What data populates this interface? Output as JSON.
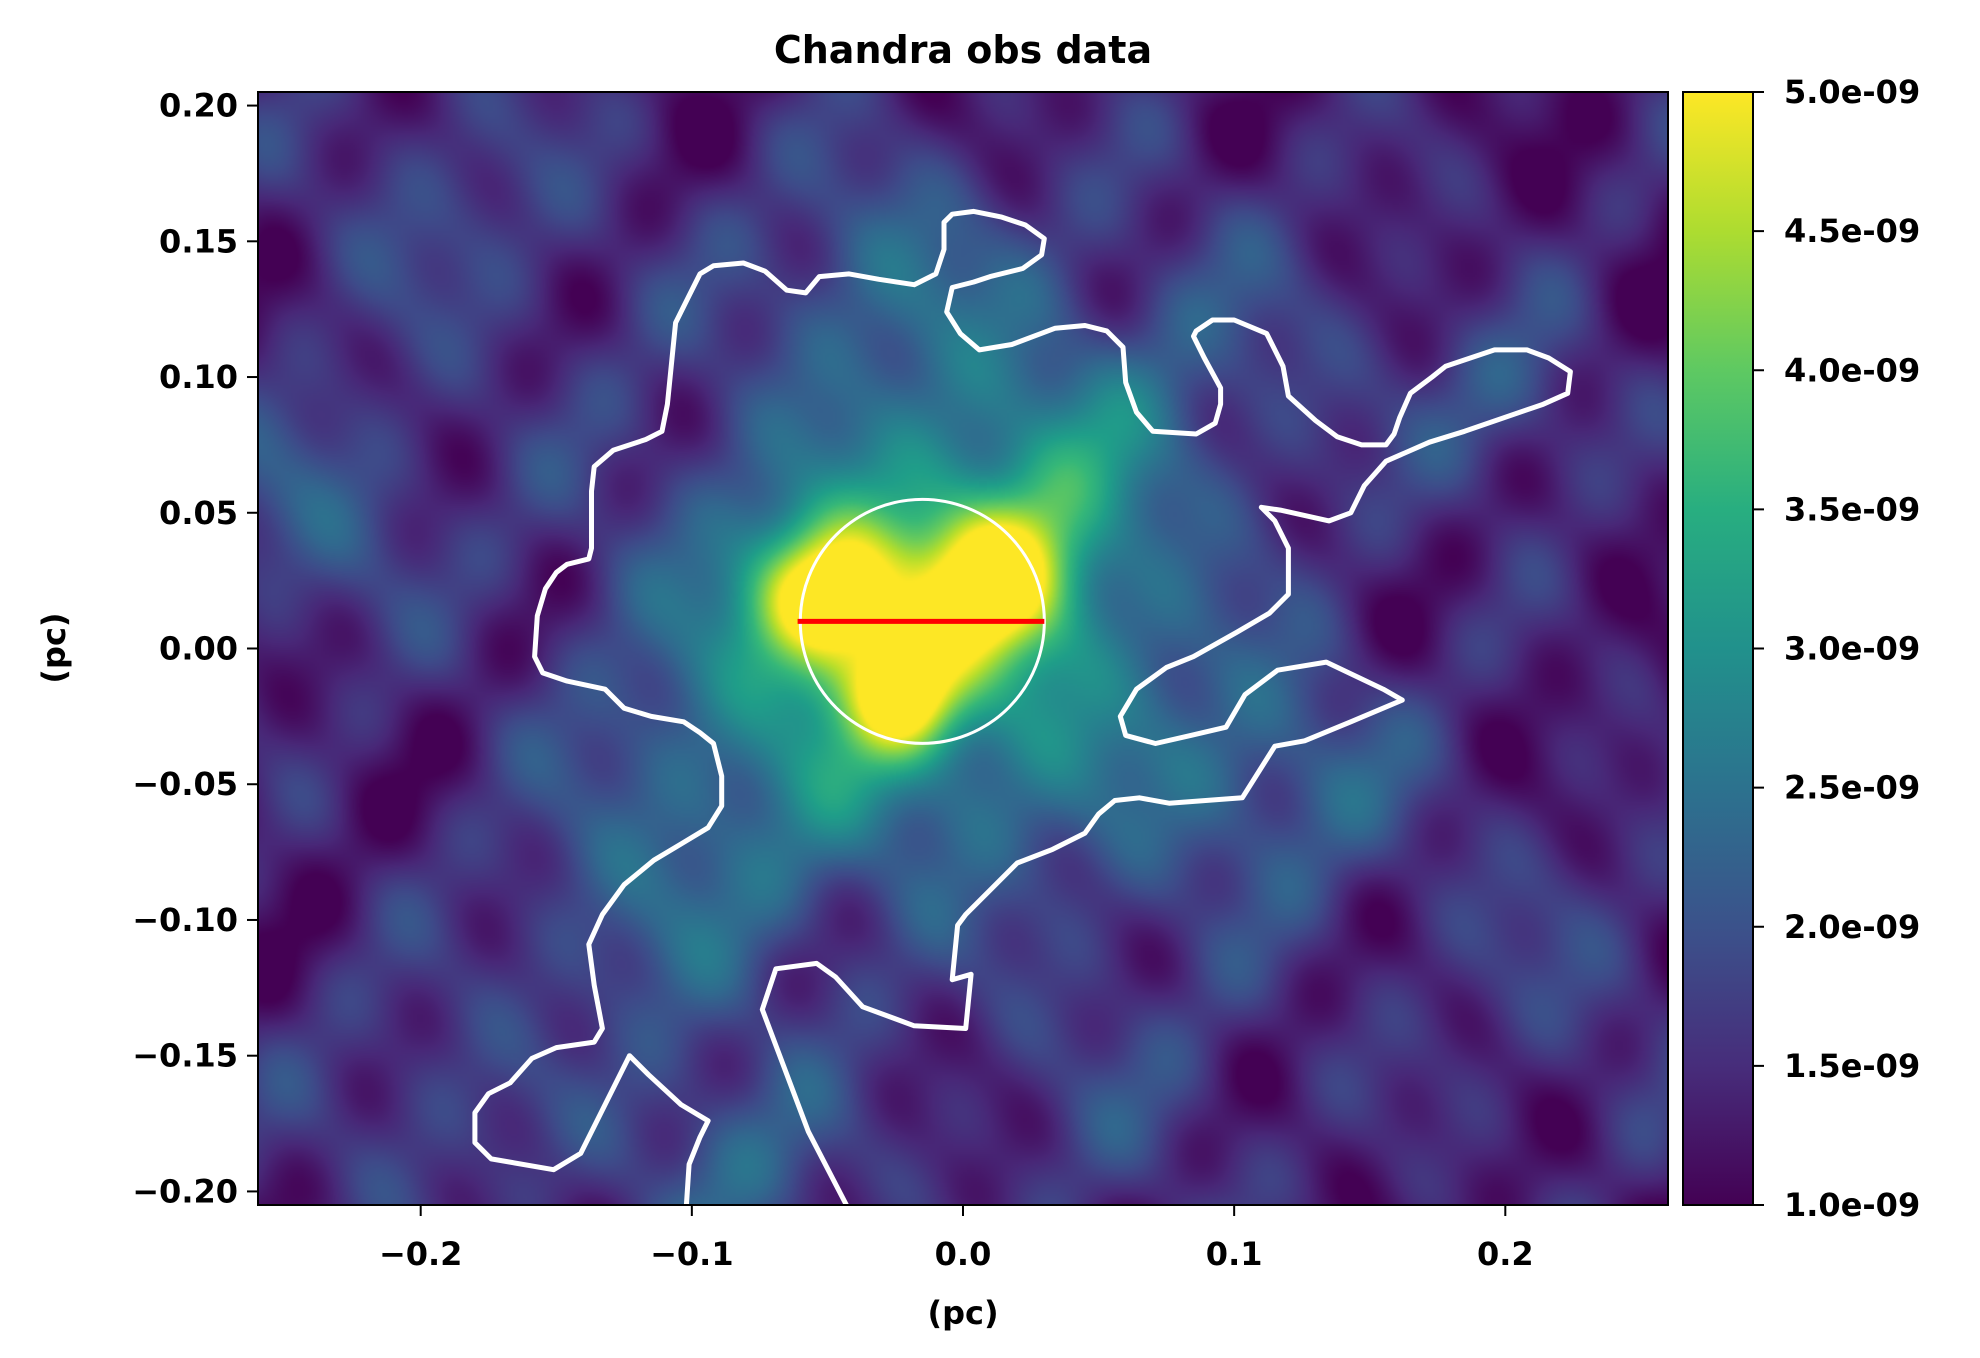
{
  "chart_data": {
    "type": "heatmap",
    "title": "Chandra obs data",
    "xlabel": "(pc)",
    "ylabel": "(pc)",
    "xlim": [
      -0.26,
      0.26
    ],
    "ylim": [
      -0.205,
      0.205
    ],
    "xticks": [
      {
        "value": -0.2,
        "label": "−0.2"
      },
      {
        "value": -0.1,
        "label": "−0.1"
      },
      {
        "value": 0.0,
        "label": "0.0"
      },
      {
        "value": 0.1,
        "label": "0.1"
      },
      {
        "value": 0.2,
        "label": "0.2"
      }
    ],
    "yticks": [
      {
        "value": 0.2,
        "label": "0.20"
      },
      {
        "value": 0.15,
        "label": "0.15"
      },
      {
        "value": 0.1,
        "label": "0.10"
      },
      {
        "value": 0.05,
        "label": "0.05"
      },
      {
        "value": 0.0,
        "label": "0.00"
      },
      {
        "value": -0.05,
        "label": "−0.05"
      },
      {
        "value": -0.1,
        "label": "−0.10"
      },
      {
        "value": -0.15,
        "label": "−0.15"
      },
      {
        "value": -0.2,
        "label": "−0.20"
      }
    ],
    "colorbar": {
      "colormap": "viridis",
      "vmin": 1e-09,
      "vmax": 5e-09,
      "ticks": [
        {
          "value": 1e-09,
          "label": "1.0e-09"
        },
        {
          "value": 1.5e-09,
          "label": "1.5e-09"
        },
        {
          "value": 2e-09,
          "label": "2.0e-09"
        },
        {
          "value": 2.5e-09,
          "label": "2.5e-09"
        },
        {
          "value": 3e-09,
          "label": "3.0e-09"
        },
        {
          "value": 3.5e-09,
          "label": "3.5e-09"
        },
        {
          "value": 4e-09,
          "label": "4.0e-09"
        },
        {
          "value": 4.5e-09,
          "label": "4.5e-09"
        },
        {
          "value": 5e-09,
          "label": "5.0e-09"
        }
      ]
    },
    "sources": [
      {
        "x": -0.05,
        "y": 0.02,
        "amp": 3e-09,
        "sigma": 0.018
      },
      {
        "x": 0.012,
        "y": 0.025,
        "amp": 2.6e-09,
        "sigma": 0.02
      },
      {
        "x": -0.022,
        "y": -0.018,
        "amp": 2.3e-09,
        "sigma": 0.014
      },
      {
        "x": -0.015,
        "y": 0.008,
        "amp": 1.3e-09,
        "sigma": 0.045
      },
      {
        "x": -0.015,
        "y": 0.02,
        "amp": 9e-10,
        "sigma": 0.08
      },
      {
        "x": 0.04,
        "y": 0.07,
        "amp": 9e-10,
        "sigma": 0.03
      },
      {
        "x": -0.07,
        "y": -0.04,
        "amp": 6e-10,
        "sigma": 0.05
      },
      {
        "x": -0.025,
        "y": 0.14,
        "amp": 8e-10,
        "sigma": 0.03
      },
      {
        "x": 0.2,
        "y": 0.09,
        "amp": 7e-10,
        "sigma": 0.025
      },
      {
        "x": -0.24,
        "y": 0.05,
        "amp": 8e-10,
        "sigma": 0.03
      },
      {
        "x": -0.085,
        "y": -0.19,
        "amp": 9e-10,
        "sigma": 0.03
      },
      {
        "x": -0.12,
        "y": -0.1,
        "amp": 6e-10,
        "sigma": 0.035
      },
      {
        "x": 0.08,
        "y": -0.04,
        "amp": 5e-10,
        "sigma": 0.04
      },
      {
        "x": 0.13,
        "y": -0.05,
        "amp": 6e-10,
        "sigma": 0.03
      },
      {
        "x": -0.19,
        "y": 0.16,
        "amp": 5e-10,
        "sigma": 0.04
      },
      {
        "x": 0.1,
        "y": 0.12,
        "amp": 4e-10,
        "sigma": 0.04
      },
      {
        "x": 0.06,
        "y": -0.17,
        "amp": 4e-10,
        "sigma": 0.04
      },
      {
        "x": -0.2,
        "y": -0.17,
        "amp": 5e-10,
        "sigma": 0.035
      },
      {
        "x": 0.22,
        "y": -0.12,
        "amp": 4e-10,
        "sigma": 0.04
      }
    ],
    "background": 1.3e-09,
    "contour": [
      [
        [
          -0.102,
          -0.205
        ],
        [
          -0.101,
          -0.19
        ],
        [
          -0.097,
          -0.18
        ],
        [
          -0.094,
          -0.174
        ],
        [
          -0.104,
          -0.168
        ],
        [
          -0.116,
          -0.157
        ],
        [
          -0.123,
          -0.15
        ],
        [
          -0.141,
          -0.186
        ],
        [
          -0.151,
          -0.192
        ],
        [
          -0.174,
          -0.188
        ],
        [
          -0.18,
          -0.182
        ],
        [
          -0.18,
          -0.171
        ],
        [
          -0.175,
          -0.164
        ],
        [
          -0.167,
          -0.16
        ],
        [
          -0.159,
          -0.151
        ],
        [
          -0.15,
          -0.147
        ],
        [
          -0.136,
          -0.145
        ],
        [
          -0.133,
          -0.14
        ],
        [
          -0.136,
          -0.124
        ],
        [
          -0.138,
          -0.109
        ],
        [
          -0.133,
          -0.098
        ],
        [
          -0.125,
          -0.087
        ],
        [
          -0.114,
          -0.078
        ],
        [
          -0.104,
          -0.072
        ],
        [
          -0.094,
          -0.066
        ],
        [
          -0.089,
          -0.058
        ],
        [
          -0.089,
          -0.047
        ],
        [
          -0.092,
          -0.035
        ],
        [
          -0.097,
          -0.031
        ],
        [
          -0.103,
          -0.027
        ],
        [
          -0.115,
          -0.025
        ],
        [
          -0.125,
          -0.022
        ],
        [
          -0.132,
          -0.015
        ],
        [
          -0.146,
          -0.012
        ],
        [
          -0.155,
          -0.009
        ],
        [
          -0.158,
          -0.003
        ],
        [
          -0.157,
          0.012
        ],
        [
          -0.154,
          0.022
        ],
        [
          -0.15,
          0.028
        ],
        [
          -0.146,
          0.031
        ],
        [
          -0.138,
          0.033
        ],
        [
          -0.137,
          0.037
        ],
        [
          -0.137,
          0.058
        ],
        [
          -0.136,
          0.067
        ],
        [
          -0.129,
          0.073
        ],
        [
          -0.117,
          0.077
        ],
        [
          -0.111,
          0.08
        ],
        [
          -0.109,
          0.09
        ],
        [
          -0.106,
          0.12
        ],
        [
          -0.101,
          0.13
        ],
        [
          -0.097,
          0.138
        ],
        [
          -0.092,
          0.141
        ],
        [
          -0.081,
          0.142
        ],
        [
          -0.073,
          0.139
        ],
        [
          -0.065,
          0.132
        ],
        [
          -0.058,
          0.131
        ],
        [
          -0.053,
          0.137
        ],
        [
          -0.042,
          0.138
        ],
        [
          -0.031,
          0.136
        ],
        [
          -0.018,
          0.134
        ],
        [
          -0.01,
          0.138
        ],
        [
          -0.007,
          0.147
        ],
        [
          -0.007,
          0.157
        ],
        [
          -0.004,
          0.16
        ],
        [
          0.004,
          0.161
        ],
        [
          0.014,
          0.159
        ],
        [
          0.023,
          0.156
        ],
        [
          0.03,
          0.151
        ],
        [
          0.029,
          0.145
        ],
        [
          0.022,
          0.14
        ],
        [
          0.01,
          0.137
        ],
        [
          0.004,
          0.135
        ],
        [
          -0.004,
          0.133
        ],
        [
          -0.006,
          0.124
        ],
        [
          -0.001,
          0.116
        ],
        [
          0.006,
          0.11
        ],
        [
          0.018,
          0.112
        ],
        [
          0.034,
          0.118
        ],
        [
          0.045,
          0.119
        ],
        [
          0.053,
          0.117
        ],
        [
          0.059,
          0.111
        ],
        [
          0.06,
          0.098
        ],
        [
          0.064,
          0.087
        ],
        [
          0.07,
          0.08
        ],
        [
          0.086,
          0.079
        ],
        [
          0.093,
          0.083
        ],
        [
          0.095,
          0.09
        ],
        [
          0.095,
          0.096
        ],
        [
          0.089,
          0.107
        ],
        [
          0.085,
          0.115
        ],
        [
          0.086,
          0.117
        ],
        [
          0.092,
          0.121
        ],
        [
          0.1,
          0.121
        ],
        [
          0.112,
          0.116
        ],
        [
          0.118,
          0.104
        ],
        [
          0.12,
          0.093
        ],
        [
          0.13,
          0.084
        ],
        [
          0.138,
          0.078
        ],
        [
          0.147,
          0.075
        ],
        [
          0.156,
          0.075
        ],
        [
          0.159,
          0.079
        ],
        [
          0.161,
          0.085
        ],
        [
          0.165,
          0.094
        ],
        [
          0.173,
          0.1
        ],
        [
          0.178,
          0.104
        ],
        [
          0.196,
          0.11
        ],
        [
          0.208,
          0.11
        ],
        [
          0.216,
          0.107
        ],
        [
          0.224,
          0.102
        ],
        [
          0.223,
          0.094
        ],
        [
          0.214,
          0.09
        ],
        [
          0.185,
          0.08
        ],
        [
          0.172,
          0.076
        ],
        [
          0.156,
          0.069
        ],
        [
          0.148,
          0.06
        ],
        [
          0.143,
          0.05
        ],
        [
          0.135,
          0.047
        ],
        [
          0.117,
          0.051
        ],
        [
          0.11,
          0.052
        ],
        [
          0.115,
          0.047
        ],
        [
          0.12,
          0.037
        ],
        [
          0.12,
          0.02
        ],
        [
          0.113,
          0.013
        ],
        [
          0.101,
          0.006
        ],
        [
          0.085,
          -0.003
        ],
        [
          0.075,
          -0.007
        ],
        [
          0.064,
          -0.015
        ],
        [
          0.058,
          -0.025
        ],
        [
          0.06,
          -0.032
        ],
        [
          0.071,
          -0.035
        ],
        [
          0.084,
          -0.032
        ],
        [
          0.097,
          -0.029
        ],
        [
          0.104,
          -0.017
        ],
        [
          0.116,
          -0.008
        ],
        [
          0.134,
          -0.005
        ],
        [
          0.155,
          -0.015
        ],
        [
          0.162,
          -0.019
        ],
        [
          0.143,
          -0.027
        ],
        [
          0.126,
          -0.034
        ],
        [
          0.115,
          -0.036
        ],
        [
          0.103,
          -0.055
        ],
        [
          0.076,
          -0.057
        ],
        [
          0.065,
          -0.055
        ],
        [
          0.056,
          -0.056
        ],
        [
          0.05,
          -0.061
        ],
        [
          0.045,
          -0.068
        ],
        [
          0.033,
          -0.074
        ],
        [
          0.02,
          -0.079
        ],
        [
          0.01,
          -0.089
        ],
        [
          0.001,
          -0.098
        ],
        [
          -0.002,
          -0.102
        ],
        [
          -0.004,
          -0.122
        ],
        [
          0.003,
          -0.12
        ],
        [
          0.001,
          -0.14
        ],
        [
          -0.018,
          -0.139
        ],
        [
          -0.037,
          -0.132
        ],
        [
          -0.047,
          -0.121
        ],
        [
          -0.054,
          -0.116
        ],
        [
          -0.069,
          -0.118
        ],
        [
          -0.074,
          -0.133
        ],
        [
          -0.057,
          -0.178
        ],
        [
          -0.043,
          -0.205
        ]
      ]
    ],
    "circle": {
      "x": -0.015,
      "y": 0.01,
      "r": 0.045
    },
    "segment": {
      "x1": -0.061,
      "y1": 0.01,
      "x2": 0.03,
      "y2": 0.01,
      "color": "#ff0000"
    }
  }
}
